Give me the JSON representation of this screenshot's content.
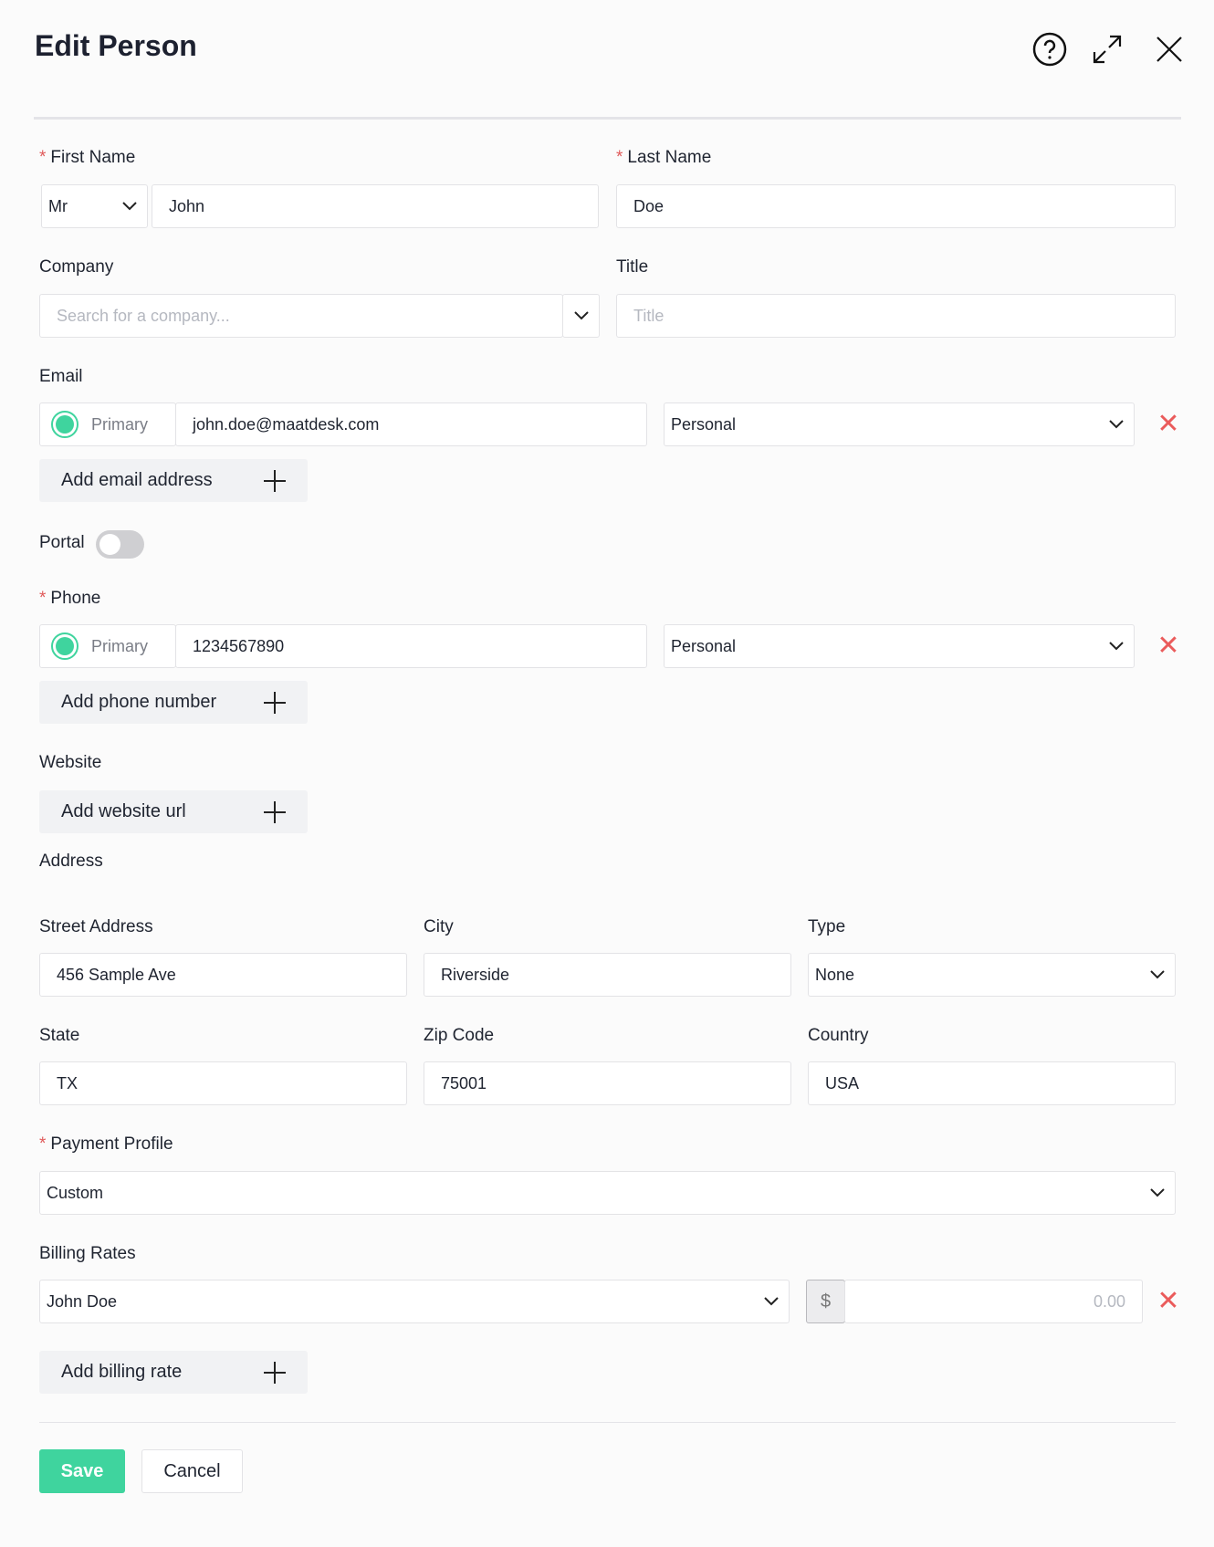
{
  "header": {
    "title": "Edit Person",
    "icons": [
      "help-circle-icon",
      "expand-icon",
      "close-icon"
    ]
  },
  "first_name": {
    "label": "First Name",
    "salutation": "Mr",
    "value": "John"
  },
  "last_name": {
    "label": "Last Name",
    "value": "Doe"
  },
  "company": {
    "label": "Company",
    "placeholder": "Search for a company..."
  },
  "title_field": {
    "label": "Title",
    "placeholder": "Title"
  },
  "email": {
    "label": "Email",
    "primary_label": "Primary",
    "value": "john.doe@maatdesk.com",
    "type": "Personal",
    "add_label": "Add email address"
  },
  "portal": {
    "label": "Portal",
    "enabled": false
  },
  "phone": {
    "label": "Phone",
    "primary_label": "Primary",
    "value": "1234567890",
    "type": "Personal",
    "add_label": "Add phone number"
  },
  "website": {
    "label": "Website",
    "add_label": "Add website url"
  },
  "address": {
    "label": "Address",
    "street": {
      "label": "Street Address",
      "value": "456 Sample Ave"
    },
    "city": {
      "label": "City",
      "value": "Riverside"
    },
    "type": {
      "label": "Type",
      "value": "None"
    },
    "state": {
      "label": "State",
      "value": "TX"
    },
    "zip": {
      "label": "Zip Code",
      "value": "75001"
    },
    "country": {
      "label": "Country",
      "value": "USA"
    }
  },
  "payment_profile": {
    "label": "Payment Profile",
    "value": "Custom"
  },
  "billing_rates": {
    "label": "Billing Rates",
    "person": "John Doe",
    "currency": "$",
    "amount_placeholder": "0.00",
    "add_label": "Add billing rate"
  },
  "footer": {
    "save": "Save",
    "cancel": "Cancel"
  },
  "colors": {
    "accent": "#3fd49e",
    "danger": "#ea5b5b",
    "required": "#e05a5a"
  }
}
